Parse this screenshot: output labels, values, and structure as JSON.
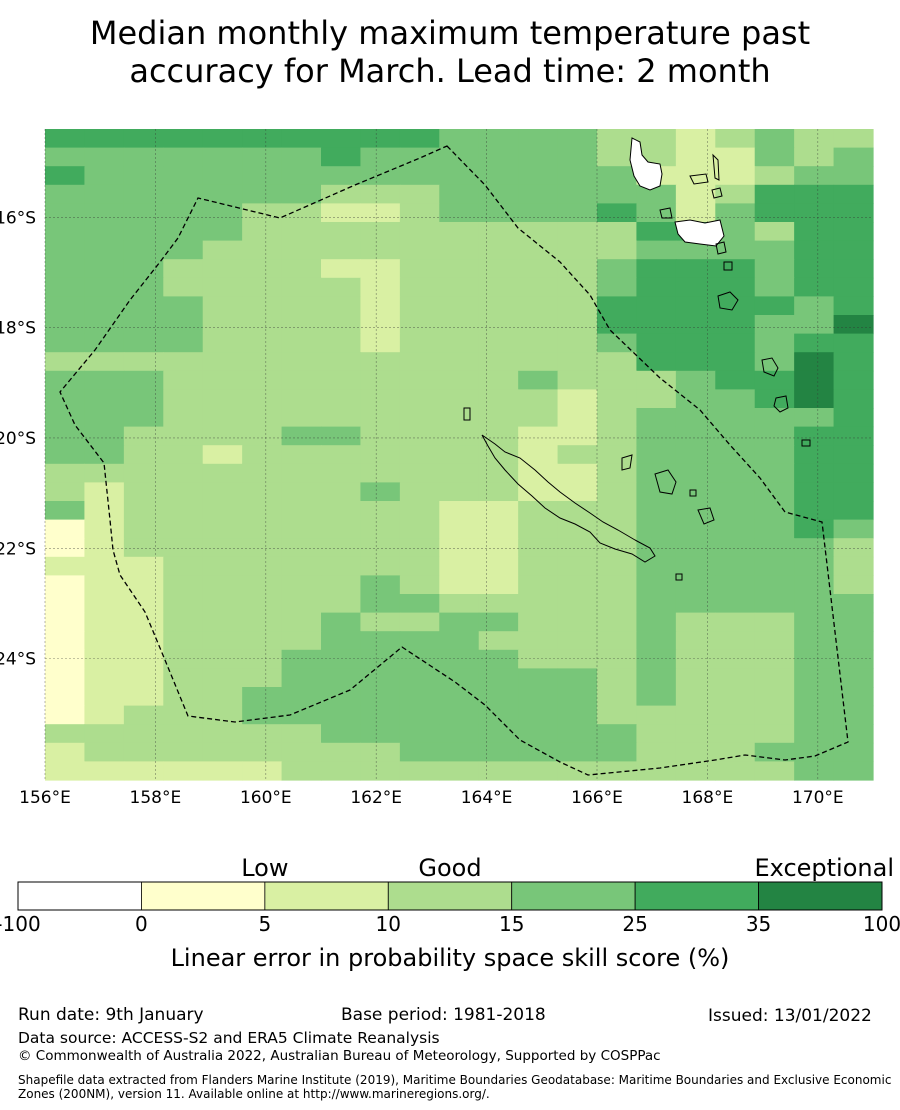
{
  "title": {
    "line1": "Median monthly maximum temperature past",
    "line2": "accuracy for March. Lead time: 2 month"
  },
  "map": {
    "lon_range": [
      156,
      171
    ],
    "lat_range": [
      -26.2,
      -14.4
    ],
    "x_ticks": [
      {
        "value": 156,
        "label": "156°E"
      },
      {
        "value": 158,
        "label": "158°E"
      },
      {
        "value": 160,
        "label": "160°E"
      },
      {
        "value": 162,
        "label": "162°E"
      },
      {
        "value": 164,
        "label": "164°E"
      },
      {
        "value": 166,
        "label": "166°E"
      },
      {
        "value": 168,
        "label": "168°E"
      },
      {
        "value": 170,
        "label": "170°E"
      }
    ],
    "y_ticks": [
      {
        "value": -16,
        "label": "16°S"
      },
      {
        "value": -18,
        "label": "18°S"
      },
      {
        "value": -20,
        "label": "20°S"
      },
      {
        "value": -22,
        "label": "22°S"
      },
      {
        "value": -24,
        "label": "24°S"
      }
    ],
    "grid_note": "skill category per cell: 0=<0, 1=0-5, 2=5-10, 3=10-15, 4=15-25, 5=25-35, 6=35-100",
    "grid": [
      "555555555544443323433",
      "444444454444443322434",
      "544444444444444222344",
      "444444433344444423555",
      "444443322344445424555",
      "444443333333333554355",
      "444433333333333444455",
      "444333322333334555455",
      "444333332333334555455",
      "444433332333335555545",
      "444433332333335555446",
      "444433332333334555455",
      "333333333333333555465",
      "444333333333433345565",
      "444333333333323344565",
      "444333333333323444445",
      "443333443333223444455",
      "443323333333233444455",
      "333333333333223444455",
      "323333334333223444455",
      "423333333322333444455",
      "123333333322333444454",
      "123333333322333444443",
      "222333333322333444443",
      "122333334322333444443",
      "122333334433333444444",
      "122333343344333433344",
      "122333344443333433344",
      "122333444444333433344",
      "122333444444443433344",
      "122334444444443433344",
      "123334444444443333344",
      "333333344444444333344",
      "233333333444444333444",
      "222222333333333333344"
    ]
  },
  "colorbar": {
    "categories": [
      {
        "label": "Low",
        "anchor": 2
      },
      {
        "label": "Good",
        "anchor": 3.5
      },
      {
        "label": "Exceptional",
        "anchor": 6.5
      }
    ],
    "colors": [
      "#ffffff",
      "#ffffcc",
      "#d9f0a3",
      "#addd8e",
      "#78c679",
      "#41ab5d",
      "#238443"
    ],
    "ticks": [
      "-100",
      "0",
      "5",
      "10",
      "15",
      "25",
      "35",
      "100"
    ],
    "caption": "Linear error in probability space skill score (%)"
  },
  "footer": {
    "run_date": "Run date: 9th January",
    "base_period": "Base period: 1981-2018",
    "issued": "Issued: 13/01/2022",
    "data_source": "Data source: ACCESS-S2 and ERA5 Climate Reanalysis",
    "copyright": "© Commonwealth of Australia 2022, Australian Bureau of Meteorology, Supported by COSPPac",
    "shapefile": "Shapefile data extracted from Flanders Marine Institute (2019), Maritime Boundaries Geodatabase: Maritime Boundaries and Exclusive Economic Zones (200NM), version 11. Available online at http://www.marineregions.org/."
  }
}
